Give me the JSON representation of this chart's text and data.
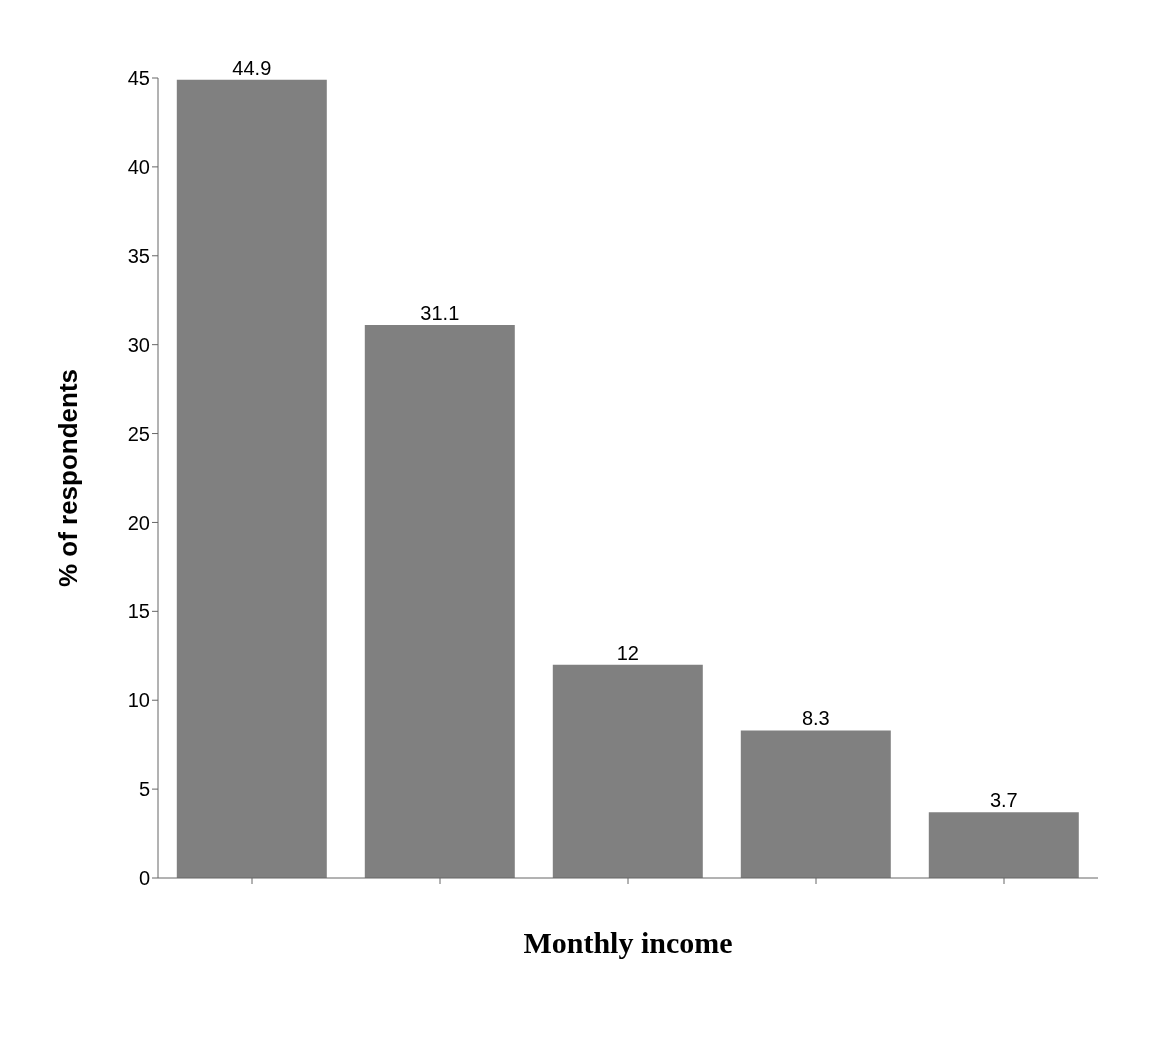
{
  "chart_data": {
    "type": "bar",
    "xlabel": "Monthly income",
    "ylabel": "% of respondents",
    "categories": [
      null,
      null,
      null,
      null,
      null
    ],
    "values": [
      44.9,
      31.1,
      12,
      8.3,
      3.7
    ],
    "color": "#808080",
    "ylim": [
      0,
      45
    ],
    "yticks": [
      0,
      5,
      10,
      15,
      20,
      25,
      30,
      35,
      40,
      45
    ],
    "data_labels": true,
    "grid": false,
    "legend": false
  }
}
